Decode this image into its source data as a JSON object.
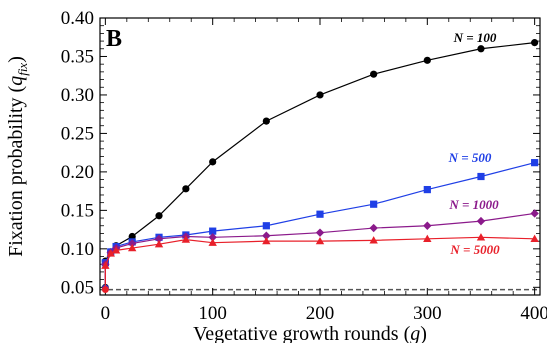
{
  "chart_data": {
    "type": "line",
    "panel_label": "B",
    "xlabel": "Vegetative growth rounds (g)",
    "ylabel": "Fixation probability (q_fix)",
    "xlim": [
      -5,
      405
    ],
    "ylim": [
      0.04,
      0.4
    ],
    "x_ticks": [
      0,
      100,
      200,
      300,
      400
    ],
    "y_ticks": [
      0.05,
      0.1,
      0.15,
      0.2,
      0.25,
      0.3,
      0.35,
      0.4
    ],
    "x_tick_labels": [
      "0",
      "100",
      "200",
      "300",
      "400"
    ],
    "y_tick_labels": [
      "0.05",
      "0.10",
      "0.15",
      "0.20",
      "0.25",
      "0.30",
      "0.35",
      "0.40"
    ],
    "reference_line": {
      "y": 0.047,
      "style": "dashed",
      "color": "#555555"
    },
    "series": [
      {
        "name": "N = 100",
        "color": "#000000",
        "marker": "circle",
        "points": [
          [
            0,
            0.084
          ],
          [
            5,
            0.096
          ],
          [
            10,
            0.104
          ],
          [
            25,
            0.116
          ],
          [
            50,
            0.143
          ],
          [
            75,
            0.178
          ],
          [
            100,
            0.213
          ],
          [
            150,
            0.266
          ],
          [
            200,
            0.3
          ],
          [
            250,
            0.327
          ],
          [
            300,
            0.345
          ],
          [
            350,
            0.36
          ],
          [
            400,
            0.368
          ]
        ]
      },
      {
        "name": "N = 500",
        "color": "#1f3fe6",
        "marker": "square",
        "points": [
          [
            0,
            0.082
          ],
          [
            5,
            0.096
          ],
          [
            10,
            0.103
          ],
          [
            25,
            0.109
          ],
          [
            50,
            0.115
          ],
          [
            75,
            0.118
          ],
          [
            100,
            0.123
          ],
          [
            150,
            0.13
          ],
          [
            200,
            0.145
          ],
          [
            250,
            0.158
          ],
          [
            300,
            0.177
          ],
          [
            350,
            0.194
          ],
          [
            400,
            0.212
          ]
        ]
      },
      {
        "name": "N = 1000",
        "color": "#8b1a8b",
        "marker": "diamond",
        "points": [
          [
            0,
            0.08
          ],
          [
            5,
            0.095
          ],
          [
            10,
            0.101
          ],
          [
            25,
            0.107
          ],
          [
            50,
            0.113
          ],
          [
            75,
            0.116
          ],
          [
            100,
            0.115
          ],
          [
            150,
            0.117
          ],
          [
            200,
            0.121
          ],
          [
            250,
            0.127
          ],
          [
            300,
            0.13
          ],
          [
            350,
            0.136
          ],
          [
            400,
            0.146
          ]
        ]
      },
      {
        "name": "N = 5000",
        "color": "#e8202a",
        "marker": "triangle",
        "points": [
          [
            0,
            0.078
          ],
          [
            5,
            0.094
          ],
          [
            10,
            0.098
          ],
          [
            25,
            0.101
          ],
          [
            50,
            0.106
          ],
          [
            75,
            0.112
          ],
          [
            100,
            0.108
          ],
          [
            150,
            0.11
          ],
          [
            200,
            0.11
          ],
          [
            250,
            0.111
          ],
          [
            300,
            0.113
          ],
          [
            350,
            0.115
          ],
          [
            400,
            0.113
          ]
        ]
      }
    ],
    "early_points": {
      "x": 0,
      "values": [
        0.05,
        0.049,
        0.048,
        0.047
      ]
    }
  }
}
